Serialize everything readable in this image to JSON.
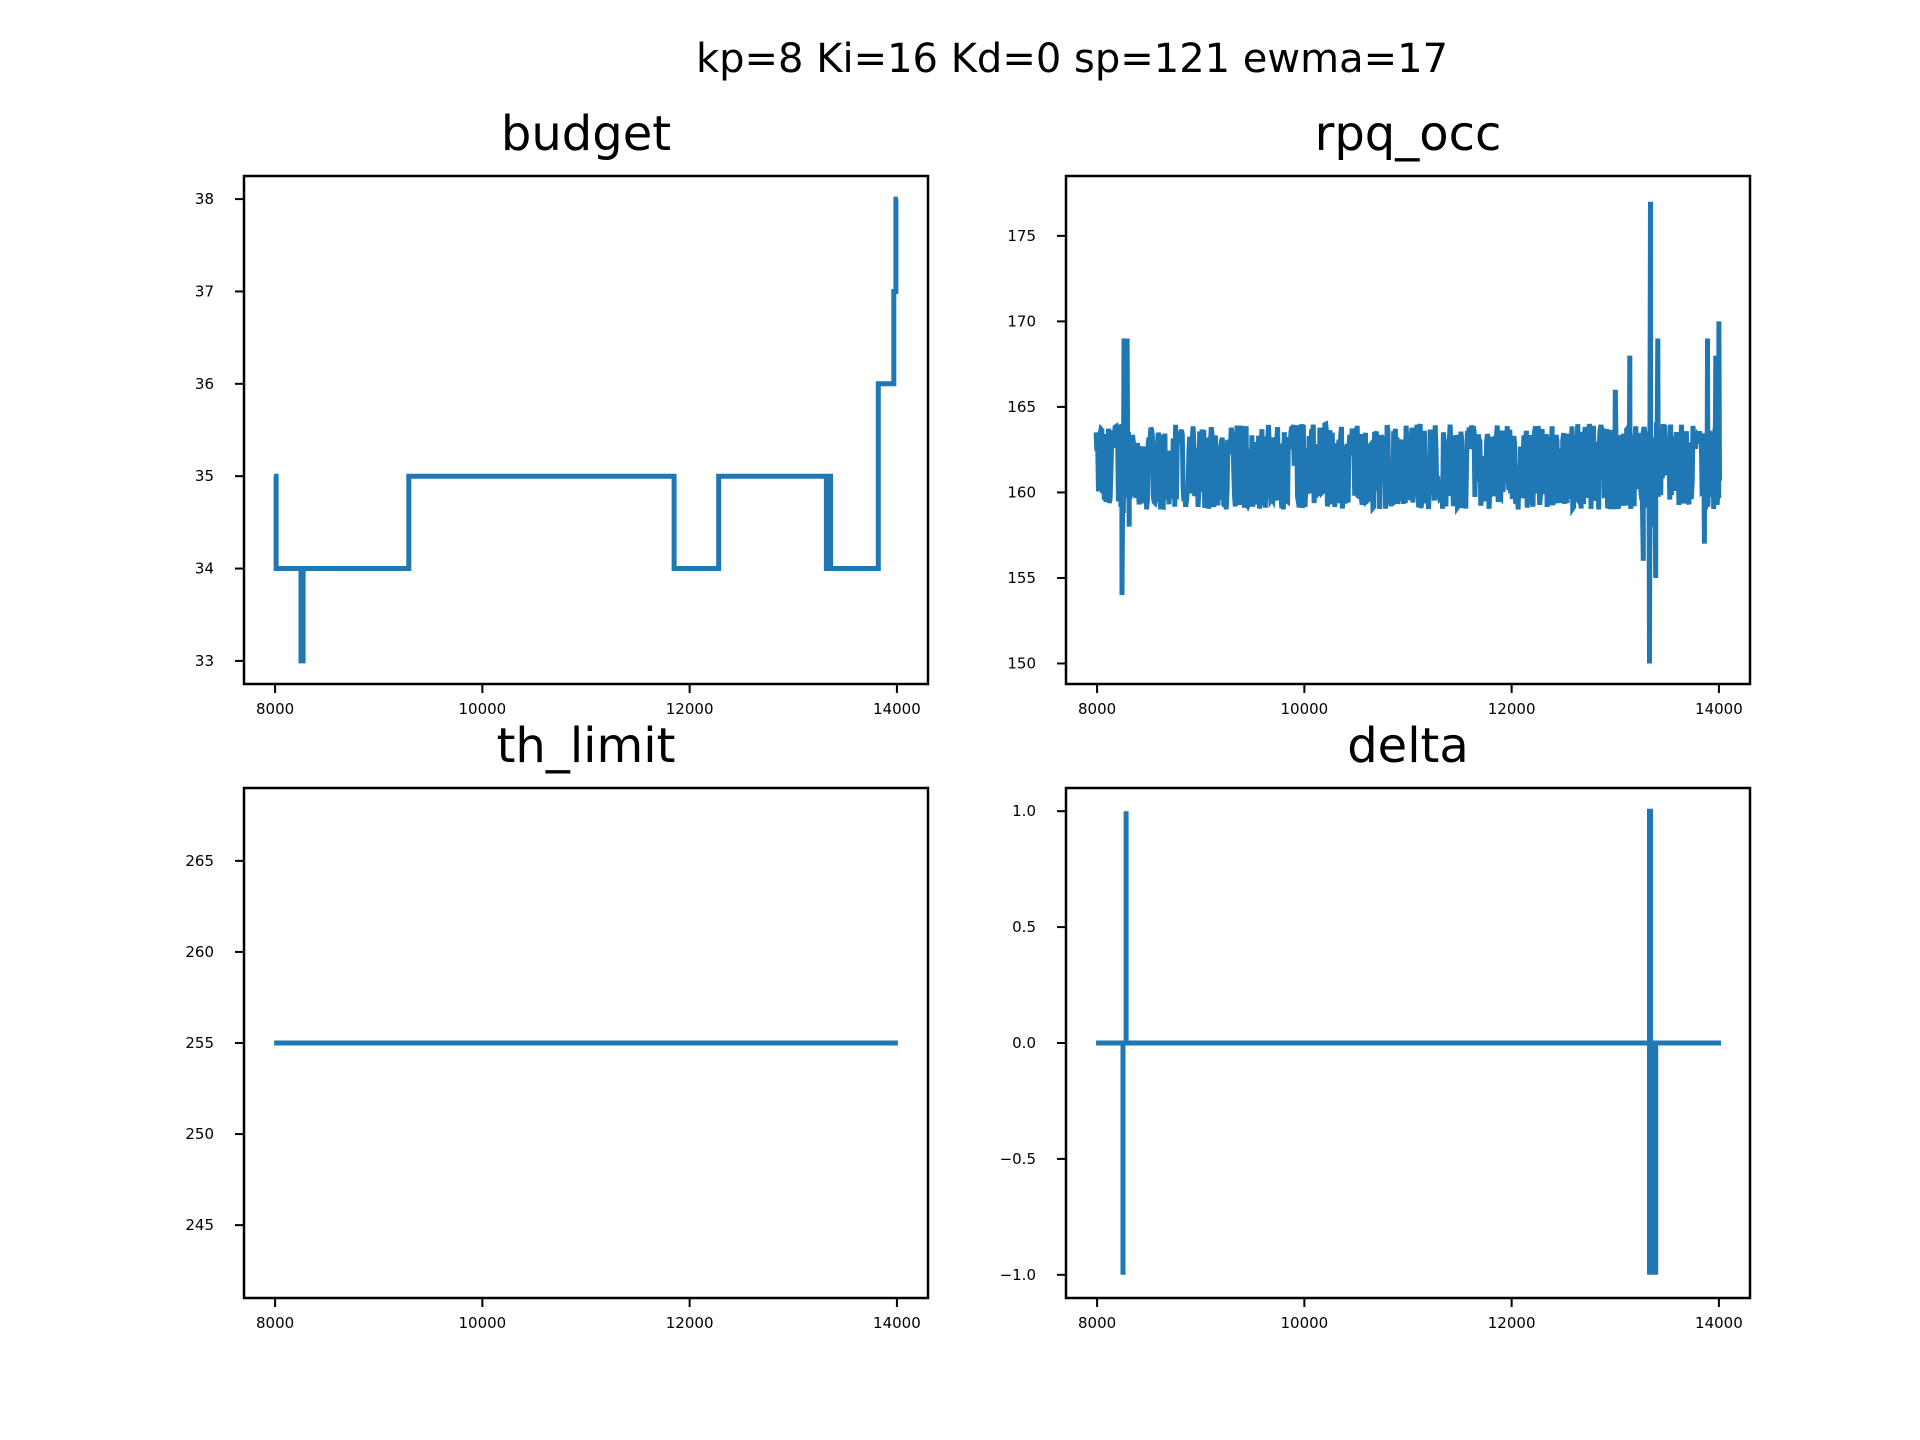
{
  "figure": {
    "suptitle": "kp=8 Ki=16 Kd=0 sp=121 ewma=17",
    "line_color": "#1f77b4"
  },
  "chart_data": [
    {
      "type": "line",
      "title": "budget",
      "xlabel": "",
      "ylabel": "",
      "xlim": [
        7700,
        14300
      ],
      "ylim": [
        32.75,
        38.25
      ],
      "xticks": [
        8000,
        10000,
        12000,
        14000
      ],
      "yticks": [
        33,
        34,
        35,
        36,
        37,
        38
      ],
      "grid": false,
      "series": [
        {
          "step": true,
          "x": [
            7990,
            8010,
            8250,
            8270,
            8290,
            9290,
            11850,
            12280,
            13320,
            13340,
            13360,
            13380,
            13820,
            13970,
            13990,
            14010
          ],
          "y": [
            35,
            34,
            33,
            34,
            34,
            35,
            34,
            35,
            34,
            35,
            34,
            34,
            36,
            37,
            38,
            38
          ]
        }
      ]
    },
    {
      "type": "line",
      "title": "rpq_occ",
      "xlabel": "",
      "ylabel": "",
      "xlim": [
        7700,
        14300
      ],
      "ylim": [
        148.8,
        178.5
      ],
      "xticks": [
        8000,
        10000,
        12000,
        14000
      ],
      "yticks": [
        150,
        155,
        160,
        165,
        170,
        175
      ],
      "grid": false,
      "noisy": true,
      "series": [
        {
          "x_range": [
            7990,
            14010
          ],
          "y_center": 161.5,
          "typical_range": [
            159,
            164
          ],
          "spikes": [
            {
              "x": 8240,
              "y": 154
            },
            {
              "x": 8260,
              "y": 169
            },
            {
              "x": 8290,
              "y": 169
            },
            {
              "x": 8310,
              "y": 158
            },
            {
              "x": 12840,
              "y": 159
            },
            {
              "x": 13000,
              "y": 166
            },
            {
              "x": 13140,
              "y": 168
            },
            {
              "x": 13270,
              "y": 156
            },
            {
              "x": 13330,
              "y": 150
            },
            {
              "x": 13340,
              "y": 177
            },
            {
              "x": 13360,
              "y": 158
            },
            {
              "x": 13390,
              "y": 155
            },
            {
              "x": 13410,
              "y": 169
            },
            {
              "x": 13860,
              "y": 157
            },
            {
              "x": 13890,
              "y": 169
            },
            {
              "x": 13940,
              "y": 162
            },
            {
              "x": 13970,
              "y": 168
            },
            {
              "x": 14000,
              "y": 170
            }
          ]
        }
      ]
    },
    {
      "type": "line",
      "title": "th_limit",
      "xlabel": "",
      "ylabel": "",
      "xlim": [
        7700,
        14300
      ],
      "ylim": [
        241,
        269
      ],
      "xticks": [
        8000,
        10000,
        12000,
        14000
      ],
      "yticks": [
        245,
        250,
        255,
        260,
        265
      ],
      "grid": false,
      "series": [
        {
          "x": [
            7990,
            14010
          ],
          "y": [
            255,
            255
          ]
        }
      ]
    },
    {
      "type": "line",
      "title": "delta",
      "xlabel": "",
      "ylabel": "",
      "xlim": [
        7700,
        14300
      ],
      "ylim": [
        -1.1,
        1.1
      ],
      "xticks": [
        8000,
        10000,
        12000,
        14000
      ],
      "yticks": [
        -1.0,
        -0.5,
        0.0,
        0.5,
        1.0
      ],
      "ytick_labels": [
        "−1.0",
        "−0.5",
        "0.0",
        "0.5",
        "1.0"
      ],
      "grid": false,
      "series": [
        {
          "x": [
            7990,
            8250,
            8250,
            8250,
            8280,
            8280,
            8280,
            13330,
            13330,
            13330,
            13340,
            13340,
            13340,
            13350,
            13350,
            13350,
            13360,
            13360,
            13360,
            13370,
            13370,
            13370,
            13380,
            13380,
            13380,
            13390,
            13390,
            13390,
            14020
          ],
          "y": [
            0,
            0,
            -1,
            0,
            0,
            1,
            0,
            0,
            -1,
            1,
            1,
            -1,
            0,
            0,
            -1,
            0,
            0,
            -1,
            0,
            0,
            -1,
            0,
            0,
            -1,
            0,
            0,
            -1,
            0,
            0
          ]
        }
      ]
    }
  ]
}
